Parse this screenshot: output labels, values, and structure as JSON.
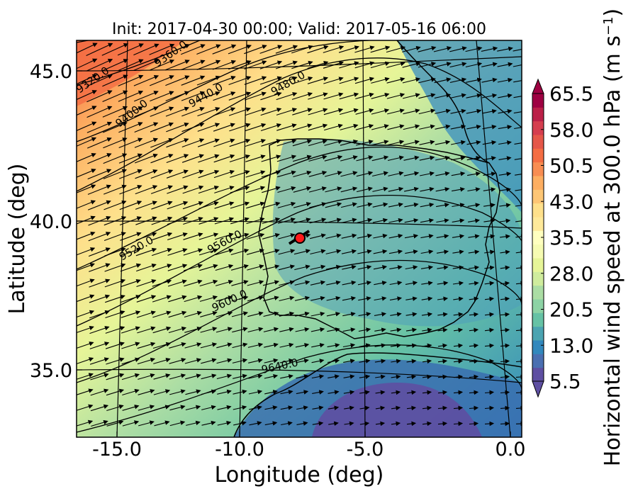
{
  "figure": {
    "title": "Init: 2017-04-30 00:00; Valid: 2017-05-16 06:00",
    "xlabel": "Longitude (deg)",
    "ylabel": "Latitude (deg)",
    "x_ticks": [
      "-15.0",
      "-10.0",
      "-5.0",
      "0.0"
    ],
    "y_ticks": [
      "45.0",
      "40.0",
      "35.0"
    ],
    "colorbar_label": "Horizontal wind speed at 300.0 hPa (m s$^{-1}$)",
    "colorbar_label_main": "Horizontal wind speed at 300.0 hPa (m s",
    "colorbar_label_sup": "−1",
    "colorbar_label_close": ")",
    "colorbar_ticks": [
      "65.5",
      "58.0",
      "50.5",
      "43.0",
      "35.5",
      "28.0",
      "20.5",
      "13.0",
      "5.5"
    ],
    "colorbar_colors": [
      "#5e4fa2",
      "#4a6fb1",
      "#3288bd",
      "#4ba4b1",
      "#66c2a5",
      "#8dd3a5",
      "#abdda4",
      "#cfec9d",
      "#e6f598",
      "#f6fbb2",
      "#ffffbf",
      "#fee99a",
      "#fee08b",
      "#fdc675",
      "#fdae61",
      "#f88d52",
      "#f46d43",
      "#e55749",
      "#d53e4f",
      "#bb2048",
      "#9e0142"
    ],
    "contour_labels": [
      {
        "text": "9320.0"
      },
      {
        "text": "9360.0"
      },
      {
        "text": "9400.0"
      },
      {
        "text": "9440.0"
      },
      {
        "text": "9480.0"
      },
      {
        "text": "9520.0"
      },
      {
        "text": "9560.0"
      },
      {
        "text": "9600.0"
      },
      {
        "text": "9640.0"
      }
    ]
  }
}
